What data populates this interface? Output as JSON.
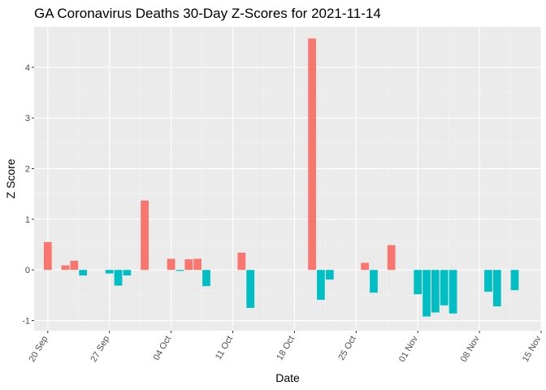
{
  "chart_data": {
    "type": "bar",
    "title": "GA Coronavirus Deaths 30-Day Z-Scores for 2021-11-14",
    "xlabel": "Date",
    "ylabel": "Z Score",
    "ylim": [
      -1.2,
      4.8
    ],
    "x_start": "2021-09-20",
    "x_end": "2021-11-15",
    "y_ticks": [
      -1,
      0,
      1,
      2,
      3,
      4
    ],
    "x_ticks": [
      {
        "date": "2021-09-20",
        "label": "20 Sep"
      },
      {
        "date": "2021-09-27",
        "label": "27 Sep"
      },
      {
        "date": "2021-10-04",
        "label": "04 Oct"
      },
      {
        "date": "2021-10-11",
        "label": "11 Oct"
      },
      {
        "date": "2021-10-18",
        "label": "18 Oct"
      },
      {
        "date": "2021-10-25",
        "label": "25 Oct"
      },
      {
        "date": "2021-11-01",
        "label": "01 Nov"
      },
      {
        "date": "2021-11-08",
        "label": "08 Nov"
      },
      {
        "date": "2021-11-15",
        "label": "15 Nov"
      }
    ],
    "colors": {
      "positive": "#f8766d",
      "negative": "#00bfc4"
    },
    "series": [
      {
        "name": "Z Score",
        "points": [
          {
            "date": "2021-09-20",
            "value": 0.55
          },
          {
            "date": "2021-09-22",
            "value": 0.09
          },
          {
            "date": "2021-09-23",
            "value": 0.18
          },
          {
            "date": "2021-09-24",
            "value": -0.11
          },
          {
            "date": "2021-09-27",
            "value": -0.07
          },
          {
            "date": "2021-09-28",
            "value": -0.31
          },
          {
            "date": "2021-09-29",
            "value": -0.11
          },
          {
            "date": "2021-10-01",
            "value": 1.37
          },
          {
            "date": "2021-10-04",
            "value": 0.22
          },
          {
            "date": "2021-10-05",
            "value": -0.02
          },
          {
            "date": "2021-10-06",
            "value": 0.21
          },
          {
            "date": "2021-10-07",
            "value": 0.22
          },
          {
            "date": "2021-10-08",
            "value": -0.32
          },
          {
            "date": "2021-10-12",
            "value": 0.34
          },
          {
            "date": "2021-10-13",
            "value": -0.75
          },
          {
            "date": "2021-10-20",
            "value": 4.57
          },
          {
            "date": "2021-10-21",
            "value": -0.59
          },
          {
            "date": "2021-10-22",
            "value": -0.19
          },
          {
            "date": "2021-10-26",
            "value": 0.14
          },
          {
            "date": "2021-10-27",
            "value": -0.45
          },
          {
            "date": "2021-10-29",
            "value": 0.49
          },
          {
            "date": "2021-11-01",
            "value": -0.48
          },
          {
            "date": "2021-11-02",
            "value": -0.92
          },
          {
            "date": "2021-11-03",
            "value": -0.84
          },
          {
            "date": "2021-11-04",
            "value": -0.7
          },
          {
            "date": "2021-11-05",
            "value": -0.86
          },
          {
            "date": "2021-11-09",
            "value": -0.43
          },
          {
            "date": "2021-11-10",
            "value": -0.72
          },
          {
            "date": "2021-11-12",
            "value": -0.4
          }
        ]
      }
    ]
  }
}
